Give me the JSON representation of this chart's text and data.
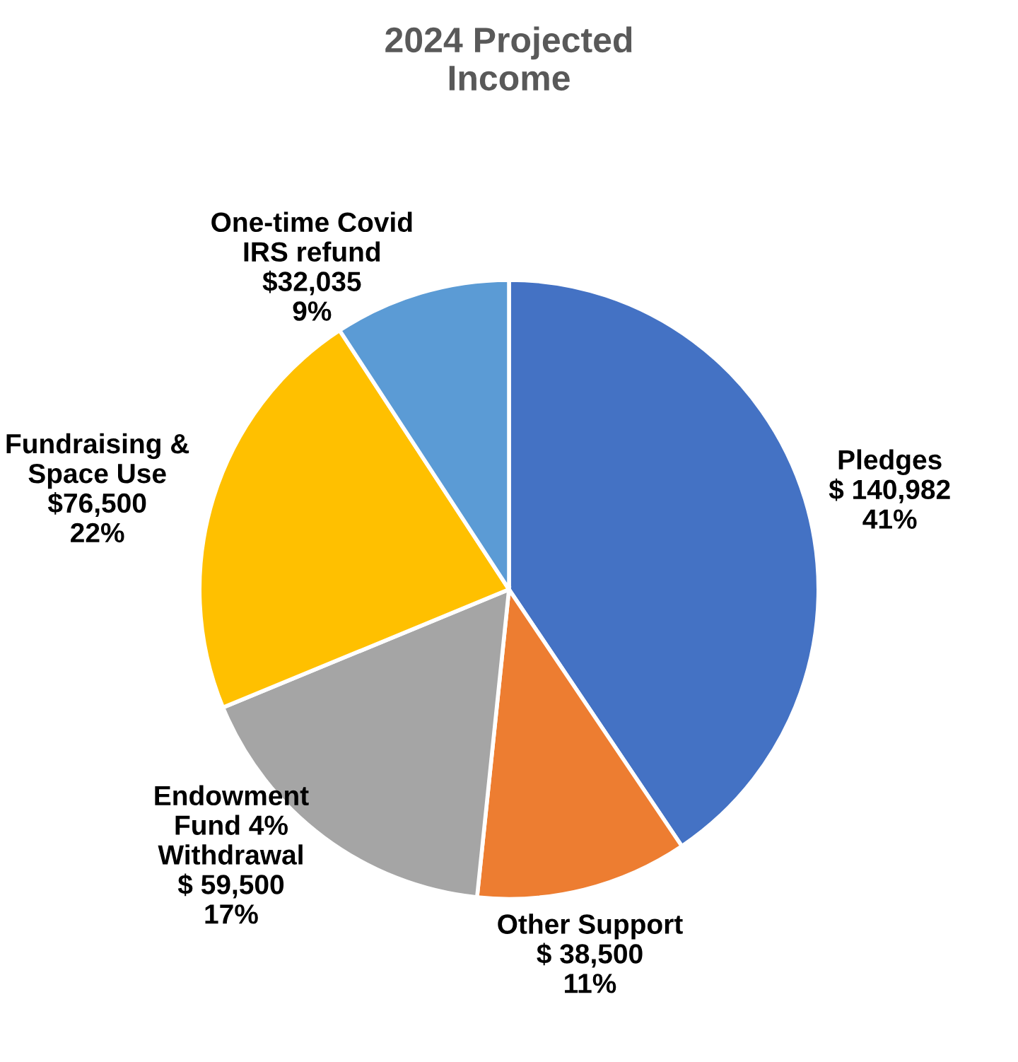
{
  "chart_data": {
    "type": "pie",
    "title": "2024 Projected\nIncome",
    "categories": [
      "Pledges",
      "Other Support",
      "Endowment\nFund 4%\nWithdrawal",
      "Fundraising &\nSpace Use",
      "One-time Covid\nIRS refund"
    ],
    "values": [
      140982,
      38500,
      59500,
      76500,
      32035
    ],
    "colors": [
      "#4472c4",
      "#ed7d31",
      "#a5a5a5",
      "#ffc000",
      "#5b9bd5"
    ],
    "value_labels": [
      "$ 140,982\n41%",
      "$ 38,500\n11%",
      "$ 59,500\n17%",
      "$76,500\n22%",
      "$32,035\n9%"
    ]
  }
}
